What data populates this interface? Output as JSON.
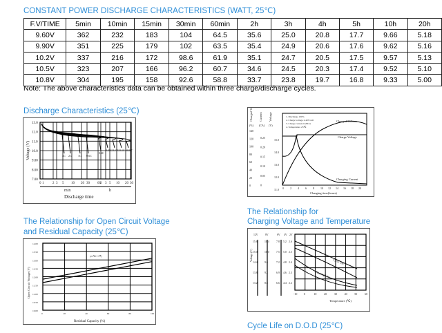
{
  "table": {
    "title": "CONSTANT POWER DISCHARGE CHARACTERISTICS (WATT, 25℃)",
    "headers": [
      "F.V/TIME",
      "5min",
      "10min",
      "15min",
      "30min",
      "60min",
      "2h",
      "3h",
      "4h",
      "5h",
      "10h",
      "20h"
    ],
    "rows": [
      [
        "9.60V",
        "362",
        "232",
        "183",
        "104",
        "64.5",
        "35.6",
        "25.0",
        "20.8",
        "17.7",
        "9.66",
        "5.18"
      ],
      [
        "9.90V",
        "351",
        "225",
        "179",
        "102",
        "63.5",
        "35.4",
        "24.9",
        "20.6",
        "17.6",
        "9.62",
        "5.16"
      ],
      [
        "10.2V",
        "337",
        "216",
        "172",
        "98.6",
        "61.9",
        "35.1",
        "24.7",
        "20.5",
        "17.5",
        "9.57",
        "5.13"
      ],
      [
        "10.5V",
        "323",
        "207",
        "166",
        "96.2",
        "60.7",
        "34.6",
        "24.5",
        "20.3",
        "17.4",
        "9.52",
        "5.10"
      ],
      [
        "10.8V",
        "304",
        "195",
        "158",
        "92.6",
        "58.8",
        "33.7",
        "23.8",
        "19.7",
        "16.8",
        "9.33",
        "5.00"
      ]
    ],
    "note": "Note: The above characteristics data can be obtained within three charge/discharge cycles."
  },
  "discharge": {
    "title": "Discharge Characteristics (25℃)",
    "ylabel": "Voltage (V)",
    "yticks": [
      "13.0",
      "12.0",
      "11.0",
      "10.0",
      "9.00",
      "8.00",
      "7.00"
    ],
    "xticks": [
      "0",
      "1",
      "2",
      "3",
      "5",
      "10",
      "20",
      "30",
      "60",
      "2",
      "3",
      "5",
      "10",
      "20",
      "30"
    ],
    "min_label": "min",
    "h_label": "h",
    "xlabel": "Discharge time",
    "curve_labels": [
      "3C",
      "2C",
      "1C",
      "0.6C",
      "0.4C",
      "0.25C",
      "0.17C",
      "0.1C",
      "0.05C"
    ]
  },
  "charging": {
    "ylabels": [
      "Charged Volume",
      "Current",
      "Voltage"
    ],
    "yunits": [
      "(%)",
      "(CA)",
      "(V)"
    ],
    "vol_ticks": [
      "140",
      "120",
      "100",
      "80",
      "60",
      "40",
      "20",
      "0"
    ],
    "ca_ticks": [
      "0.25",
      "0.20",
      "0.15",
      "0.10",
      "0.05",
      "0"
    ],
    "v_ticks": [
      "15.0",
      "14.0",
      "13.0",
      "12.0",
      "11.0"
    ],
    "xticks": [
      "0",
      "2",
      "4",
      "6",
      "8",
      "10",
      "12",
      "14",
      "16",
      "18",
      "20"
    ],
    "notes": [
      "1. Discharge 100%",
      "2. Charge voltage 2.40V/cell",
      "3. Charge current 0.28CA",
      "4. Temperature 25℃"
    ],
    "series": [
      "Charged Volume",
      "Charge Voltage",
      "Charging Current"
    ],
    "xlabel": "Charging time(hours)"
  },
  "ocv": {
    "title1": "The Relationship for Open Circuit Voltage",
    "title2": "and Residual Capacity (25℃)",
    "ylabel": "Open Circuit Voltage (V)",
    "yticks": [
      "14.00",
      "13.50",
      "13.00",
      "12.50",
      "12.00",
      "11.50",
      "11.00",
      "10.50",
      "10.00"
    ],
    "xticks": [
      "0",
      "20",
      "40",
      "60",
      "80",
      "100"
    ],
    "xlabel": "Residual Capacity (%)",
    "annotation": "(25℃/77℉)"
  },
  "temp": {
    "title1": "The Relationship for",
    "title2": "Charging Voltage and Temperature",
    "ylabel": "Voltage (V)",
    "col_heads": [
      "12V",
      "8V",
      "6V",
      "4V",
      "2V"
    ],
    "rows": [
      [
        "15.6",
        "10.4",
        "7.8",
        "5.2",
        "2.6"
      ],
      [
        "15.0",
        "10.0",
        "7.5",
        "5.0",
        "2.5"
      ],
      [
        "14.4",
        "9.6",
        "7.2",
        "4.8",
        "2.4"
      ],
      [
        "13.8",
        "9.2",
        "6.9",
        "4.6",
        "2.3"
      ],
      [
        "13.2",
        "8.8",
        "6.6",
        "4.4",
        "2.2"
      ]
    ],
    "xticks": [
      "-10",
      "0",
      "10",
      "20",
      "30",
      "40",
      "50",
      "60"
    ],
    "xlabel": "Temperature (℃)",
    "series": [
      "Cycle Use",
      "Floating Use"
    ]
  },
  "cycle": {
    "title": "Cycle Life on D.O.D (25℃)"
  }
}
